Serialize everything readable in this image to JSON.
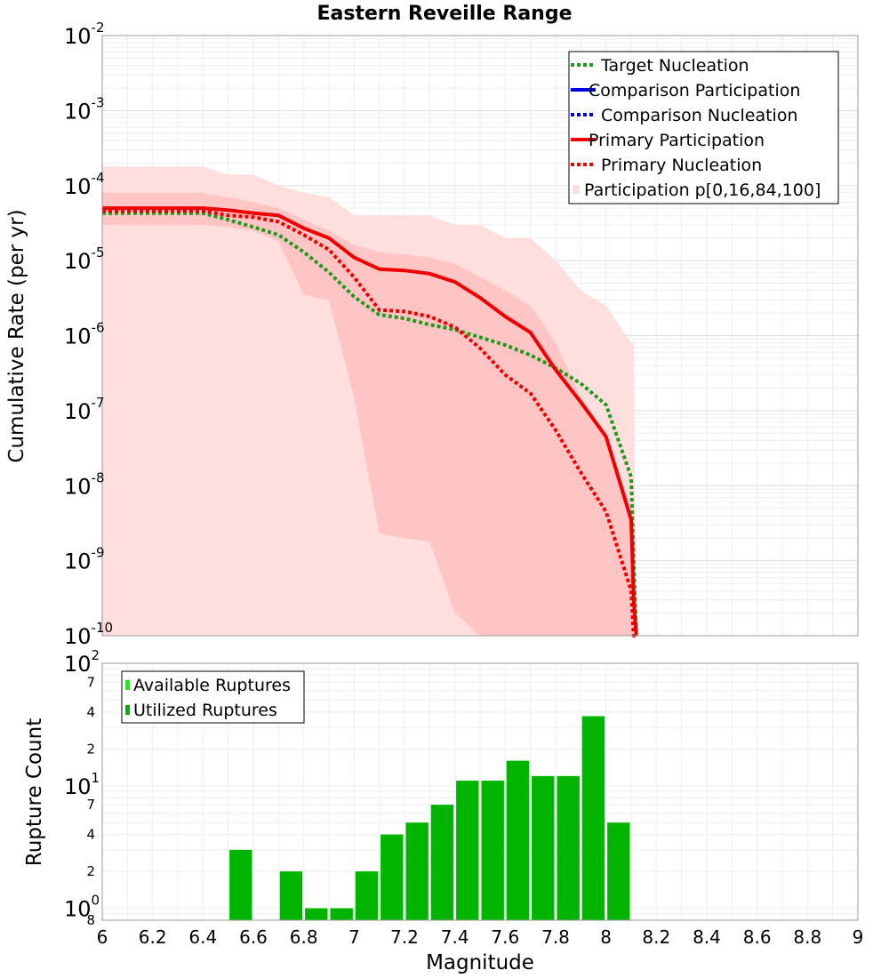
{
  "chart_data": [
    {
      "type": "line",
      "title": "Eastern Reveille Range",
      "xlabel": "Magnitude",
      "ylabel": "Cumulative Rate (per yr)",
      "yscale": "log",
      "xlim": [
        6,
        9
      ],
      "ylim": [
        1e-10,
        0.01
      ],
      "y_ticks": [
        {
          "base": "10",
          "exp": "-2",
          "value": 0.01
        },
        {
          "base": "10",
          "exp": "-3",
          "value": 0.001
        },
        {
          "base": "10",
          "exp": "-4",
          "value": 0.0001
        },
        {
          "base": "10",
          "exp": "-5",
          "value": 1e-05
        },
        {
          "base": "10",
          "exp": "-6",
          "value": 1e-06
        },
        {
          "base": "10",
          "exp": "-7",
          "value": 1e-07
        },
        {
          "base": "10",
          "exp": "-8",
          "value": 1e-08
        },
        {
          "base": "10",
          "exp": "-9",
          "value": 1e-09
        },
        {
          "base": "10",
          "exp": "-10",
          "value": 1e-10
        }
      ],
      "bands": [
        {
          "name": "Participation p[0,100]",
          "color": "#ffdede",
          "x": [
            6.0,
            6.1,
            6.2,
            6.3,
            6.4,
            6.5,
            6.6,
            6.7,
            6.8,
            6.9,
            7.0,
            7.1,
            7.2,
            7.3,
            7.4,
            7.5,
            7.6,
            7.7,
            7.8,
            7.9,
            8.0,
            8.1,
            8.11,
            8.12
          ],
          "upper": [
            0.00018,
            0.00018,
            0.00018,
            0.00018,
            0.00018,
            0.00014,
            0.00014,
            0.0001,
            8e-05,
            7e-05,
            4e-05,
            4e-05,
            4e-05,
            4e-05,
            3e-05,
            3e-05,
            2e-05,
            2e-05,
            1e-05,
            4e-06,
            2.5e-06,
            8e-07,
            8e-07,
            1e-10
          ],
          "lower": [
            1e-10,
            1e-10,
            1e-10,
            1e-10,
            1e-10,
            1e-10,
            1e-10,
            1e-10,
            1e-10,
            1e-10,
            1e-10,
            1e-10,
            1e-10,
            1e-10,
            1e-10,
            1e-10,
            1e-10,
            1e-10,
            1e-10,
            1e-10,
            1e-10,
            1e-10,
            1e-10,
            1e-10
          ]
        },
        {
          "name": "Participation p[16,84]",
          "color": "#ffc4c4",
          "x": [
            6.0,
            6.1,
            6.2,
            6.3,
            6.4,
            6.5,
            6.6,
            6.7,
            6.8,
            6.9,
            7.0,
            7.1,
            7.2,
            7.3,
            7.4,
            7.5,
            7.6,
            7.7,
            7.8,
            7.9,
            8.0,
            8.1,
            8.11,
            8.12
          ],
          "upper": [
            8e-05,
            8e-05,
            8e-05,
            8e-05,
            8e-05,
            7e-05,
            6e-05,
            5e-05,
            3.5e-05,
            2.5e-05,
            1.6e-05,
            1.3e-05,
            1.2e-05,
            1.1e-05,
            9e-06,
            6e-06,
            4e-06,
            2.5e-06,
            8e-07,
            1.5e-07,
            5e-08,
            5e-09,
            4e-10,
            1e-10
          ],
          "lower": [
            3e-05,
            3e-05,
            3e-05,
            3e-05,
            3e-05,
            2.8e-05,
            2.5e-05,
            1.8e-05,
            3.5e-06,
            3e-06,
            1.5e-07,
            2.3e-09,
            2e-09,
            1.8e-09,
            2e-10,
            1e-10,
            1e-10,
            1e-10,
            1e-10,
            1e-10,
            1e-10,
            1e-10,
            1e-10,
            1e-10
          ]
        }
      ],
      "series": [
        {
          "name": "Target Nucleation",
          "color": "#1f9a1f",
          "style": "dotted",
          "x": [
            6.0,
            6.1,
            6.2,
            6.3,
            6.4,
            6.5,
            6.6,
            6.7,
            6.8,
            6.9,
            7.0,
            7.1,
            7.2,
            7.3,
            7.4,
            7.5,
            7.6,
            7.7,
            7.8,
            7.9,
            8.0,
            8.1,
            8.11,
            8.12
          ],
          "y": [
            4.3e-05,
            4.3e-05,
            4.3e-05,
            4.3e-05,
            4.3e-05,
            3.5e-05,
            2.8e-05,
            2.2e-05,
            1.3e-05,
            7e-06,
            3.3e-06,
            1.9e-06,
            1.7e-06,
            1.4e-06,
            1.2e-06,
            9.5e-07,
            7.5e-07,
            5.5e-07,
            3.7e-07,
            2.3e-07,
            1.2e-07,
            1.3e-08,
            1e-09,
            1e-10
          ]
        },
        {
          "name": "Comparison Participation",
          "color": "#0000dd",
          "style": "solid",
          "x": [],
          "y": []
        },
        {
          "name": "Comparison Nucleation",
          "color": "#0000dd",
          "style": "dotted",
          "x": [],
          "y": []
        },
        {
          "name": "Primary Participation",
          "color": "#ee0000",
          "style": "solid",
          "x": [
            6.0,
            6.1,
            6.2,
            6.3,
            6.4,
            6.5,
            6.6,
            6.7,
            6.8,
            6.9,
            7.0,
            7.1,
            7.2,
            7.3,
            7.4,
            7.5,
            7.6,
            7.7,
            7.8,
            7.9,
            8.0,
            8.1,
            8.11,
            8.12
          ],
          "y": [
            5e-05,
            5e-05,
            5e-05,
            5e-05,
            5e-05,
            4.7e-05,
            4.3e-05,
            4e-05,
            2.7e-05,
            2e-05,
            1.1e-05,
            7.7e-06,
            7.4e-06,
            6.7e-06,
            5.2e-06,
            3.2e-06,
            1.8e-06,
            1.1e-06,
            3.5e-07,
            1.3e-07,
            4.5e-08,
            3.5e-09,
            3e-10,
            1e-10
          ]
        },
        {
          "name": "Primary Nucleation",
          "color": "#ee0000",
          "style": "dotted",
          "x": [
            6.0,
            6.1,
            6.2,
            6.3,
            6.4,
            6.5,
            6.6,
            6.7,
            6.8,
            6.9,
            7.0,
            7.1,
            7.2,
            7.3,
            7.4,
            7.5,
            7.6,
            7.7,
            7.8,
            7.9,
            8.0,
            8.1,
            8.11,
            8.12
          ],
          "y": [
            4.6e-05,
            4.6e-05,
            4.6e-05,
            4.6e-05,
            4.6e-05,
            4e-05,
            3.8e-05,
            3.3e-05,
            2.2e-05,
            1.4e-05,
            6e-06,
            2.2e-06,
            2.1e-06,
            1.8e-06,
            1.3e-06,
            6.8e-07,
            3e-07,
            1.7e-07,
            5.5e-08,
            1.5e-08,
            4.5e-09,
            4e-10,
            1e-10,
            1e-10
          ]
        }
      ],
      "legend": {
        "placement": "top-right",
        "entries": [
          {
            "label": "Target Nucleation",
            "color": "#1f9a1f",
            "style": "dotted"
          },
          {
            "label": "Comparison Participation",
            "color": "#0000dd",
            "style": "solid"
          },
          {
            "label": "Comparison Nucleation",
            "color": "#0000dd",
            "style": "dotted"
          },
          {
            "label": "Primary Participation",
            "color": "#ee0000",
            "style": "solid"
          },
          {
            "label": "Primary Nucleation",
            "color": "#ee0000",
            "style": "dotted"
          },
          {
            "label": "Participation p[0,16,84,100]",
            "color": "#ffdede",
            "style": "patch"
          }
        ]
      }
    },
    {
      "type": "bar",
      "xlabel": "Magnitude",
      "ylabel": "Rupture Count",
      "yscale": "log",
      "xlim": [
        6,
        9
      ],
      "ylim": [
        0.8,
        100
      ],
      "x_ticks": [
        "6",
        "6.2",
        "6.4",
        "6.6",
        "6.8",
        "7",
        "7.2",
        "7.4",
        "7.6",
        "7.8",
        "8",
        "8.2",
        "8.4",
        "8.6",
        "8.8",
        "9"
      ],
      "y_ticks": [
        {
          "label": "10",
          "exp": "2",
          "value": 100
        },
        {
          "label": "10",
          "exp": "1",
          "value": 10
        },
        {
          "label": "10",
          "exp": "0",
          "value": 1
        }
      ],
      "y_minor_labels": [
        {
          "label": "7",
          "value": 70
        },
        {
          "label": "4",
          "value": 40
        },
        {
          "label": "2",
          "value": 20
        },
        {
          "label": "7",
          "value": 7
        },
        {
          "label": "4",
          "value": 4
        },
        {
          "label": "2",
          "value": 2
        },
        {
          "label": "8",
          "value": 0.8
        }
      ],
      "bin_width": 0.1,
      "series": [
        {
          "name": "Available Ruptures",
          "color": "#00ff00",
          "x": [
            6.55,
            6.75,
            6.85,
            6.95,
            7.05,
            7.15,
            7.25,
            7.35,
            7.45,
            7.55,
            7.65,
            7.75,
            7.85,
            7.95,
            8.05
          ],
          "values": [
            3,
            2,
            1,
            1,
            2,
            4,
            5,
            7,
            11,
            11,
            16,
            12,
            12,
            37,
            5
          ]
        },
        {
          "name": "Utilized Ruptures",
          "color": "#00b400",
          "x": [
            6.55,
            6.75,
            6.85,
            6.95,
            7.05,
            7.15,
            7.25,
            7.35,
            7.45,
            7.55,
            7.65,
            7.75,
            7.85,
            7.95,
            8.05
          ],
          "values": [
            3,
            2,
            1,
            1,
            2,
            4,
            5,
            7,
            11,
            11,
            16,
            12,
            12,
            37,
            5
          ]
        }
      ],
      "legend": {
        "placement": "top-left",
        "entries": [
          {
            "label": "Available Ruptures",
            "color": "#00ff00"
          },
          {
            "label": "Utilized Ruptures",
            "color": "#00b400"
          }
        ]
      }
    }
  ]
}
